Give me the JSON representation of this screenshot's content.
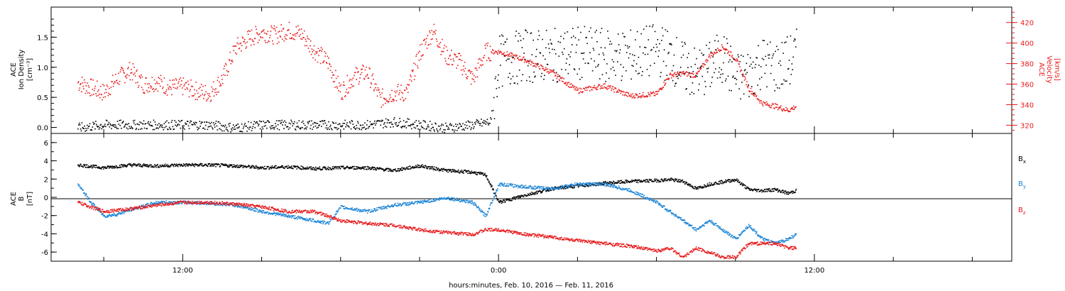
{
  "colors": {
    "black": "#000000",
    "red": "#e8191b",
    "blue": "#1a84d6"
  },
  "chart_data": [
    {
      "type": "scatter",
      "panel": "top",
      "ylabel_left": [
        "ACE",
        "Ion Density",
        "[cm⁻³]"
      ],
      "ylabel_right": [
        "ACE",
        "Velocity",
        "[km/s]"
      ],
      "y_left_ticks": [
        "0.0",
        "0.5",
        "1.0",
        "1.5"
      ],
      "y_right_ticks": [
        "320",
        "340",
        "360",
        "380",
        "400",
        "420"
      ],
      "ylim_left": [
        -0.1,
        2.0
      ],
      "ylim_right": [
        312,
        435
      ],
      "series": [
        {
          "color": "red",
          "axis": "right",
          "x": [
            8.0,
            8.5,
            9.0,
            9.5,
            10.0,
            10.5,
            11.0,
            11.5,
            12.0,
            12.5,
            13.0,
            13.5,
            14.0,
            14.5,
            15.0,
            15.5,
            16.0,
            16.5,
            17.0,
            17.5,
            18.0,
            18.5,
            19.0,
            19.5,
            20.0,
            20.5,
            21.0,
            21.5,
            22.0,
            22.5,
            23.0,
            23.5,
            24.0,
            25.0,
            26.0,
            27.0,
            28.0,
            29.0,
            30.0,
            30.5,
            31.0,
            31.5,
            32.0,
            32.5,
            33.0,
            33.5,
            34.0,
            34.5,
            35.0,
            35.3
          ],
          "y": [
            362,
            357,
            352,
            366,
            374,
            360,
            363,
            357,
            358,
            354,
            351,
            366,
            396,
            405,
            411,
            408,
            413,
            409,
            393,
            382,
            353,
            368,
            372,
            346,
            352,
            352,
            391,
            413,
            388,
            382,
            365,
            392,
            392,
            384,
            372,
            354,
            359,
            349,
            351,
            369,
            371,
            369,
            388,
            397,
            385,
            356,
            342,
            339,
            335,
            339
          ]
        },
        {
          "color": "black",
          "axis": "left",
          "x": [
            8.0,
            9.0,
            10.0,
            11.0,
            12.0,
            13.0,
            14.0,
            15.0,
            16.0,
            17.0,
            18.0,
            19.0,
            20.0,
            21.0,
            22.0,
            23.0,
            23.7,
            24.0,
            25.0,
            26.0,
            27.0,
            28.0,
            29.0,
            30.0,
            30.5,
            31.0,
            31.5,
            32.0,
            32.5,
            33.0,
            33.5,
            34.0,
            34.5,
            35.0,
            35.3
          ],
          "y": [
            0.0,
            0.05,
            0.05,
            0.05,
            0.05,
            0.05,
            0.0,
            0.05,
            0.05,
            0.05,
            0.05,
            0.05,
            0.1,
            0.05,
            0.0,
            0.05,
            0.1,
            1.1,
            1.2,
            1.2,
            1.25,
            1.2,
            1.2,
            1.3,
            1.2,
            1.0,
            0.9,
            1.0,
            1.2,
            0.8,
            0.9,
            1.1,
            1.0,
            1.1,
            1.2
          ]
        }
      ]
    },
    {
      "type": "scatter",
      "panel": "bottom",
      "ylabel_left": [
        "ACE",
        "B",
        "[nT]"
      ],
      "y_left_ticks": [
        "-6",
        "-4",
        "-2",
        "0",
        "2",
        "4",
        "6"
      ],
      "ylim": [
        -7,
        7
      ],
      "legend_placement": "right",
      "series": [
        {
          "name": "Bx",
          "color": "black",
          "x": [
            8.0,
            9.0,
            10.0,
            11.0,
            12.0,
            13.0,
            14.0,
            15.0,
            16.0,
            17.0,
            18.0,
            19.0,
            20.0,
            21.0,
            22.0,
            23.0,
            23.5,
            24.0,
            25.0,
            26.0,
            27.0,
            28.0,
            29.0,
            30.0,
            30.5,
            31.0,
            31.5,
            32.0,
            33.0,
            33.5,
            34.0,
            34.5,
            35.0,
            35.3
          ],
          "y": [
            3.6,
            3.3,
            3.6,
            3.5,
            3.6,
            3.6,
            3.5,
            3.3,
            3.4,
            3.2,
            3.3,
            3.3,
            3.0,
            3.5,
            3.0,
            2.8,
            2.5,
            -0.5,
            0.3,
            1.0,
            1.3,
            1.6,
            1.8,
            1.9,
            2.0,
            1.8,
            1.0,
            1.5,
            2.0,
            0.9,
            0.8,
            0.9,
            0.5,
            0.8
          ]
        },
        {
          "name": "By",
          "color": "blue",
          "x": [
            8.0,
            8.5,
            9.0,
            9.5,
            10.0,
            11.0,
            12.0,
            13.0,
            14.0,
            15.0,
            16.0,
            17.0,
            17.5,
            18.0,
            19.0,
            20.0,
            21.0,
            22.0,
            23.0,
            23.5,
            24.0,
            25.0,
            26.0,
            27.0,
            28.0,
            29.0,
            30.0,
            30.5,
            31.0,
            31.5,
            32.0,
            33.0,
            33.5,
            34.0,
            34.5,
            35.0,
            35.3
          ],
          "y": [
            1.5,
            -0.5,
            -2.0,
            -1.8,
            -1.3,
            -0.5,
            -0.5,
            -0.6,
            -0.8,
            -1.5,
            -2.0,
            -2.5,
            -2.8,
            -1.0,
            -1.5,
            -0.8,
            -0.5,
            0.0,
            -0.5,
            -2.0,
            1.5,
            1.2,
            1.0,
            1.5,
            1.5,
            0.8,
            -0.5,
            -1.5,
            -2.5,
            -3.5,
            -2.5,
            -4.5,
            -3.0,
            -4.5,
            -5.0,
            -4.5,
            -4.0
          ]
        },
        {
          "name": "Bz",
          "color": "red",
          "x": [
            8.0,
            9.0,
            10.0,
            11.0,
            12.0,
            13.0,
            14.0,
            15.0,
            16.0,
            17.0,
            18.0,
            19.0,
            20.0,
            21.0,
            22.0,
            23.0,
            23.5,
            24.0,
            25.0,
            26.0,
            27.0,
            28.0,
            29.0,
            30.0,
            30.5,
            31.0,
            31.5,
            32.0,
            32.5,
            33.0,
            33.5,
            34.0,
            34.5,
            35.0,
            35.3
          ],
          "y": [
            -0.5,
            -1.5,
            -1.2,
            -0.8,
            -0.5,
            -0.5,
            -0.7,
            -1.0,
            -1.5,
            -1.5,
            -2.5,
            -2.8,
            -3.0,
            -3.5,
            -3.8,
            -4.0,
            -3.5,
            -3.5,
            -4.0,
            -4.3,
            -4.7,
            -5.0,
            -5.3,
            -5.8,
            -5.5,
            -6.5,
            -5.5,
            -6.0,
            -6.5,
            -6.5,
            -5.0,
            -5.0,
            -5.0,
            -5.5,
            -5.5
          ]
        }
      ]
    }
  ],
  "x_axis": {
    "xlabel": "hours:minutes, Feb. 10, 2016 — Feb. 11, 2016",
    "range_hours": [
      7.0,
      43.5
    ],
    "tick_labels": [
      {
        "hour": 12,
        "label": "12:00"
      },
      {
        "hour": 24,
        "label": "0:00"
      },
      {
        "hour": 36,
        "label": "12:00"
      }
    ],
    "legend_labels": {
      "bx": "B",
      "bx_sub": "x",
      "by": "B",
      "by_sub": "y",
      "bz": "B",
      "bz_sub": "z"
    }
  }
}
